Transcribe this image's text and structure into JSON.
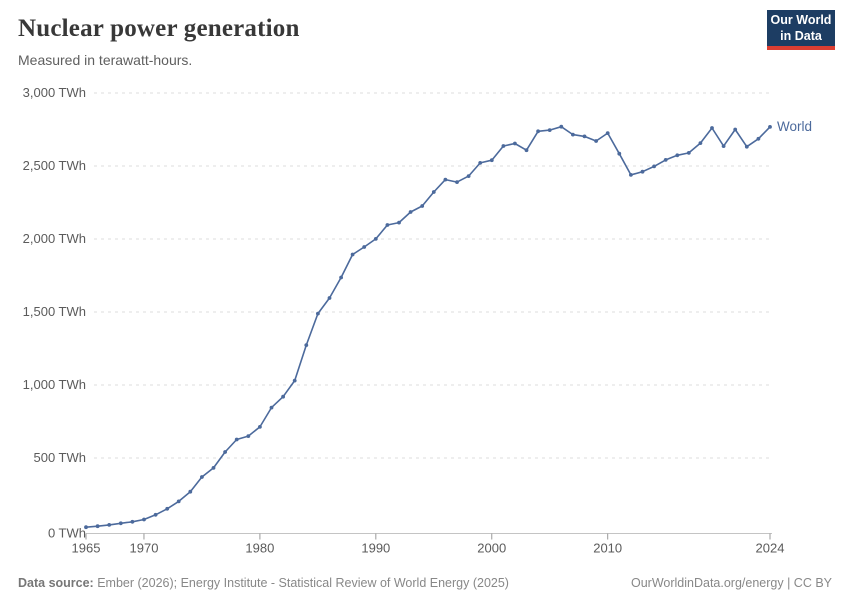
{
  "header": {
    "title": "Nuclear power generation",
    "subtitle": "Measured in terawatt-hours."
  },
  "logo": {
    "line1": "Our World",
    "line2": "in Data",
    "bg_color": "#1d3d63",
    "accent_color": "#dc3e32"
  },
  "colors": {
    "line": "#4c6a9c",
    "grid": "#dcdcdc",
    "axis": "#c4c4c4",
    "tick": "#999999",
    "tick_text": "#5b5b5b",
    "series_label": "#4c6a9c"
  },
  "chart_data": {
    "type": "line",
    "title": "Nuclear power generation",
    "subtitle": "Measured in terawatt-hours.",
    "unit": "TWh",
    "xlabel": "",
    "ylabel": "",
    "xlim": [
      1965,
      2024
    ],
    "ylim": [
      0,
      3000
    ],
    "grid": "dashed-horizontal",
    "legend": "end-of-line-label",
    "x": [
      1965,
      1966,
      1967,
      1968,
      1969,
      1970,
      1971,
      1972,
      1973,
      1974,
      1975,
      1976,
      1977,
      1978,
      1979,
      1980,
      1981,
      1982,
      1983,
      1984,
      1985,
      1986,
      1987,
      1988,
      1989,
      1990,
      1991,
      1992,
      1993,
      1994,
      1995,
      1996,
      1997,
      1998,
      1999,
      2000,
      2001,
      2002,
      2003,
      2004,
      2005,
      2006,
      2007,
      2008,
      2009,
      2010,
      2011,
      2012,
      2013,
      2014,
      2015,
      2016,
      2017,
      2018,
      2019,
      2020,
      2021,
      2022,
      2023,
      2024
    ],
    "series": [
      {
        "name": "World",
        "color": "#4c6a9c",
        "values": [
          26,
          33,
          42,
          53,
          63,
          79,
          111,
          152,
          203,
          269,
          370,
          432,
          541,
          627,
          650,
          713,
          845,
          920,
          1030,
          1273,
          1489,
          1596,
          1736,
          1894,
          1945,
          2001,
          2096,
          2112,
          2185,
          2226,
          2322,
          2407,
          2390,
          2431,
          2521,
          2540,
          2637,
          2654,
          2608,
          2738,
          2746,
          2769,
          2715,
          2703,
          2671,
          2725,
          2584,
          2439,
          2461,
          2497,
          2542,
          2573,
          2590,
          2657,
          2760,
          2636,
          2750,
          2632,
          2686,
          2768
        ]
      }
    ],
    "yticks": [
      {
        "value": 0,
        "label": "0 TWh"
      },
      {
        "value": 500,
        "label": "500 TWh"
      },
      {
        "value": 1000,
        "label": "1,000 TWh"
      },
      {
        "value": 1500,
        "label": "1,500 TWh"
      },
      {
        "value": 2000,
        "label": "2,000 TWh"
      },
      {
        "value": 2500,
        "label": "2,500 TWh"
      },
      {
        "value": 3000,
        "label": "3,000 TWh"
      }
    ],
    "xticks": [
      {
        "value": 1965,
        "label": "1965"
      },
      {
        "value": 1970,
        "label": "1970"
      },
      {
        "value": 1980,
        "label": "1980"
      },
      {
        "value": 1990,
        "label": "1990"
      },
      {
        "value": 2000,
        "label": "2000"
      },
      {
        "value": 2010,
        "label": "2010"
      },
      {
        "value": 2024,
        "label": "2024"
      }
    ]
  },
  "footer": {
    "source_label": "Data source:",
    "source_text": " Ember (2026); Energy Institute - Statistical Review of World Energy (2025)",
    "right_text": "OurWorldinData.org/energy | CC BY"
  }
}
